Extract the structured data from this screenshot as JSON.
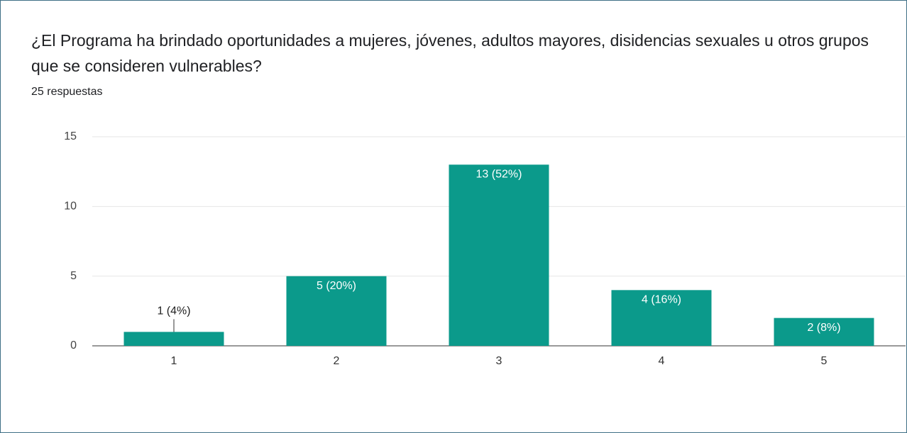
{
  "chart_data": {
    "type": "bar",
    "title": "¿El Programa ha brindado oportunidades a mujeres, jóvenes, adultos mayores, disidencias sexuales u otros grupos que se consideren vulnerables?",
    "subtitle": "25 respuestas",
    "categories": [
      "1",
      "2",
      "3",
      "4",
      "5"
    ],
    "values": [
      1,
      5,
      13,
      4,
      2
    ],
    "value_labels": [
      "1 (4%)",
      "5 (20%)",
      "13 (52%)",
      "4 (16%)",
      "2 (8%)"
    ],
    "color": "#0b9a8b",
    "ylim": [
      0,
      15
    ],
    "yticks": [
      0,
      5,
      10,
      15
    ],
    "grid": true
  }
}
